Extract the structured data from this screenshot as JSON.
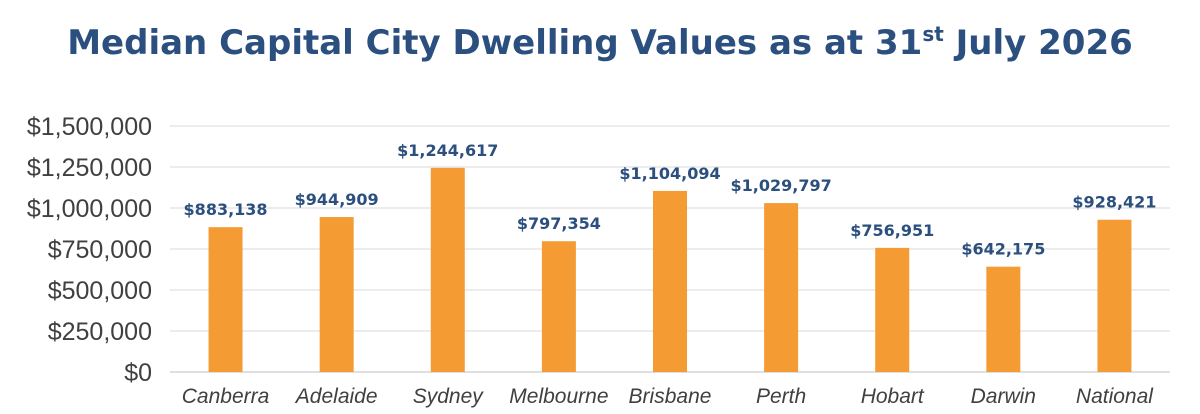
{
  "chart_data": {
    "type": "bar",
    "title": {
      "main": "Median Capital City Dwelling Values as at 31",
      "superscript": "st",
      "suffix": " July 2026"
    },
    "categories": [
      "Canberra",
      "Adelaide",
      "Sydney",
      "Melbourne",
      "Brisbane",
      "Perth",
      "Hobart",
      "Darwin",
      "National"
    ],
    "values": [
      883138,
      944909,
      1244617,
      797354,
      1104094,
      1029797,
      756951,
      642175,
      928421
    ],
    "data_labels": [
      "$883,138",
      "$944,909",
      "$1,244,617",
      "$797,354",
      "$1,104,094",
      "$1,029,797",
      "$756,951",
      "$642,175",
      "$928,421"
    ],
    "ylim": [
      0,
      1500000
    ],
    "yticks": [
      0,
      250000,
      500000,
      750000,
      1000000,
      1250000,
      1500000
    ],
    "ytick_labels": [
      "$0",
      "$250,000",
      "$500,000",
      "$750,000",
      "$1,000,000",
      "$1,250,000",
      "$1,500,000"
    ],
    "xlabel": "",
    "ylabel": "",
    "grid": true,
    "legend": "none",
    "colors": {
      "bar": "#f59b34",
      "title": "#2b4f7e",
      "data_label": "#2b4f7e",
      "tick_label": "#404040",
      "grid": "#d9d9d9"
    }
  }
}
